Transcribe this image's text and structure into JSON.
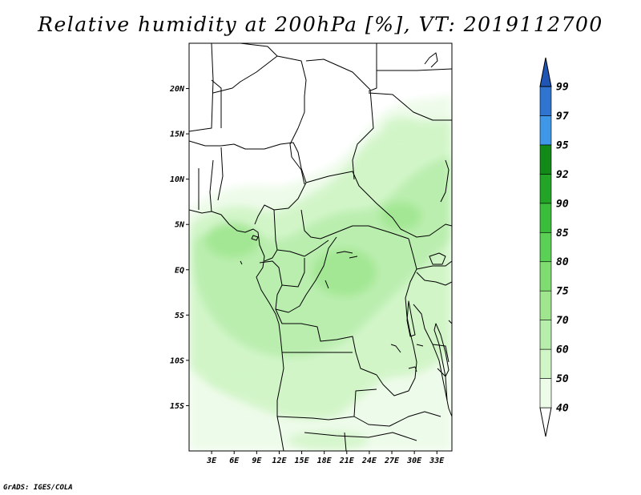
{
  "title": "Relative humidity at 200hPa [%], VT: 2019112700",
  "credit": "GrADS: IGES/COLA",
  "map": {
    "lon_range": [
      0,
      35
    ],
    "lat_range": [
      -20,
      25
    ],
    "lat_ticks": [
      {
        "value": 20,
        "label": "20N"
      },
      {
        "value": 15,
        "label": "15N"
      },
      {
        "value": 10,
        "label": "10N"
      },
      {
        "value": 5,
        "label": "5N"
      },
      {
        "value": 0,
        "label": "EQ"
      },
      {
        "value": -5,
        "label": "5S"
      },
      {
        "value": -10,
        "label": "10S"
      },
      {
        "value": -15,
        "label": "15S"
      }
    ],
    "lon_ticks": [
      {
        "value": 3,
        "label": "3E"
      },
      {
        "value": 6,
        "label": "6E"
      },
      {
        "value": 9,
        "label": "9E"
      },
      {
        "value": 12,
        "label": "12E"
      },
      {
        "value": 15,
        "label": "15E"
      },
      {
        "value": 18,
        "label": "18E"
      },
      {
        "value": 21,
        "label": "21E"
      },
      {
        "value": 24,
        "label": "24E"
      },
      {
        "value": 27,
        "label": "27E"
      },
      {
        "value": 30,
        "label": "30E"
      },
      {
        "value": 33,
        "label": "33E"
      }
    ]
  },
  "colorbar": {
    "levels": [
      "40",
      "50",
      "60",
      "70",
      "75",
      "80",
      "85",
      "90",
      "92",
      "95",
      "97",
      "99"
    ],
    "colors": [
      "#ffffff",
      "#edfbe9",
      "#d0f5c6",
      "#b7eeab",
      "#9fe68f",
      "#7fdc70",
      "#5ad055",
      "#3bbd3c",
      "#22a526",
      "#128a18",
      "#3f97e8",
      "#2f75cf",
      "#1f55b4"
    ]
  }
}
